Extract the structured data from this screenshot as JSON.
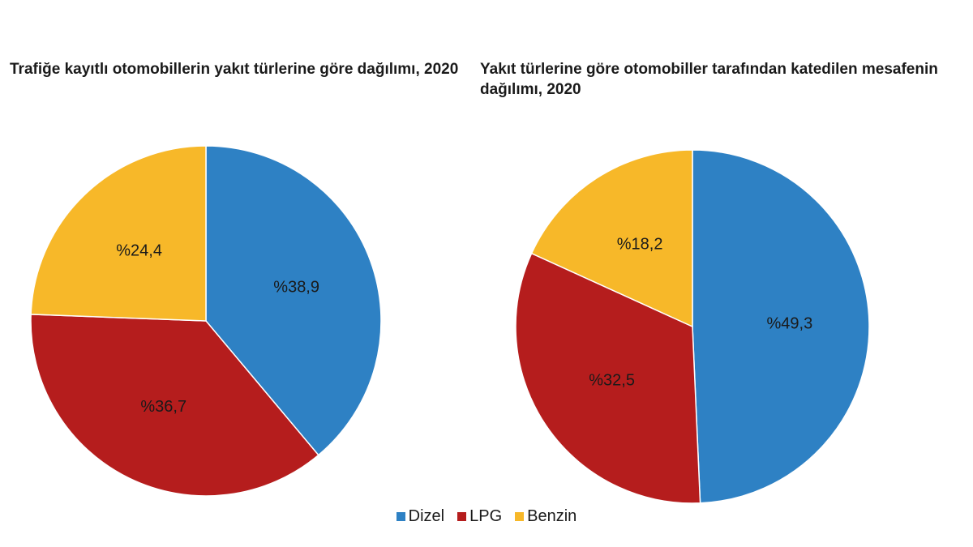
{
  "colors": {
    "Dizel": "#2e81c4",
    "LPG": "#b51d1d",
    "Benzin": "#f7b829"
  },
  "chart_data": [
    {
      "type": "pie",
      "title": "Trafiğe kayıtlı otomobillerin yakıt türlerine göre dağılımı, 2020",
      "categories": [
        "Dizel",
        "LPG",
        "Benzin"
      ],
      "values": [
        38.9,
        36.7,
        24.4
      ],
      "labels": [
        "%38,9",
        "%36,7",
        "%24,4"
      ]
    },
    {
      "type": "pie",
      "title": "Yakıt türlerine göre otomobiller tarafından katedilen mesafenin dağılımı, 2020",
      "categories": [
        "Dizel",
        "LPG",
        "Benzin"
      ],
      "values": [
        49.3,
        32.5,
        18.2
      ],
      "labels": [
        "%49,3",
        "%32,5",
        "%18,2"
      ]
    }
  ],
  "legend": [
    "Dizel",
    "LPG",
    "Benzin"
  ]
}
